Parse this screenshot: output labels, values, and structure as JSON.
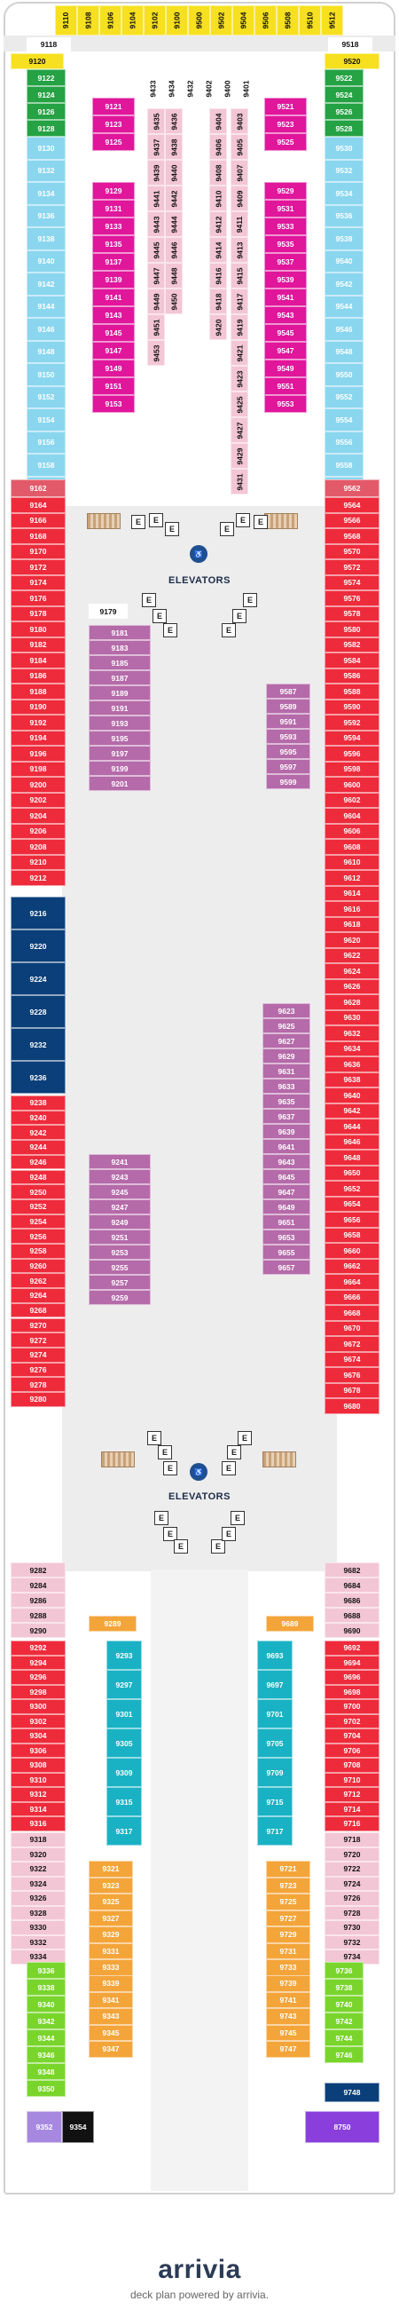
{
  "legend": {
    "elevators_label": "ELEVATORS"
  },
  "footer": {
    "brand": "arrivia",
    "tagline": "deck plan powered by arrivia."
  },
  "colors": {
    "suite_yellow": "#f6e020",
    "aqua_balcony": "#8ad6ef",
    "interior_pink": "#f3c6d5",
    "inside_magenta": "#e0169b",
    "oceanview_balcony_green": "#25a244",
    "balcony_red": "#ee2b3b",
    "obstructed_salmon": "#e25a6a",
    "central_park_purple": "#b56aa9",
    "boardwalk_teal": "#19b2c4",
    "orange": "#f3a53a",
    "lime": "#79d52c",
    "navy": "#0a3f79",
    "lavender": "#a788e0",
    "black": "#111111",
    "violet": "#8a3fdc"
  },
  "forward_vertical": [
    "9110",
    "9108",
    "9106",
    "9104",
    "9102",
    "9100",
    "9500",
    "9502",
    "9504",
    "9506",
    "9508",
    "9510",
    "9512"
  ],
  "forward_strip_left": "9118",
  "forward_strip_right": "9518",
  "suite_left": "9120",
  "suite_right": "9520",
  "green_left": [
    "9122",
    "9124",
    "9126",
    "9128"
  ],
  "green_right": [
    "9522",
    "9524",
    "9526",
    "9528"
  ],
  "aqua_left": [
    "9130",
    "9132",
    "9134",
    "9136",
    "9138",
    "9140",
    "9142",
    "9144",
    "9146",
    "9148",
    "9150",
    "9152",
    "9154",
    "9156",
    "9158",
    "9160"
  ],
  "aqua_right": [
    "9530",
    "9532",
    "9534",
    "9536",
    "9538",
    "9540",
    "9542",
    "9544",
    "9546",
    "9548",
    "9550",
    "9552",
    "9554",
    "9556",
    "9558",
    "9560"
  ],
  "inner_left_mag_top": [
    "9121",
    "9123",
    "9125"
  ],
  "inner_left_mag": [
    "9129",
    "9131",
    "9133",
    "9135",
    "9137",
    "9139",
    "9141",
    "9143",
    "9145",
    "9147",
    "9149",
    "9151",
    "9153"
  ],
  "inner_right_mag_top": [
    "9521",
    "9523",
    "9525"
  ],
  "inner_right_mag": [
    "9529",
    "9531",
    "9533",
    "9535",
    "9537",
    "9539",
    "9541",
    "9543",
    "9545",
    "9547",
    "9549",
    "9551",
    "9553"
  ],
  "interior_top_labels": [
    "9433",
    "9434",
    "9432",
    "9402",
    "9400",
    "9401"
  ],
  "interior_cols": [
    [
      "9435",
      "9437",
      "9439",
      "9441",
      "9443",
      "9445",
      "9447",
      "9449",
      "9451",
      "9453"
    ],
    [
      "9436",
      "9438",
      "9440",
      "9442",
      "9444",
      "9446",
      "9448",
      "9450"
    ],
    [
      "9404",
      "9406",
      "9408",
      "9410",
      "9412",
      "9414",
      "9416",
      "9418",
      "9420"
    ],
    [
      "9403",
      "9405",
      "9407",
      "9409",
      "9411",
      "9413",
      "9415",
      "9417",
      "9419",
      "9421",
      "9423",
      "9425",
      "9427",
      "9429",
      "9431"
    ]
  ],
  "salmon_left": "9162",
  "salmon_right": "9562",
  "red_left_1": [
    "9164",
    "9166",
    "9168",
    "9170",
    "9172",
    "9174",
    "9176",
    "9178",
    "9180",
    "9182",
    "9184",
    "9186",
    "9188",
    "9190",
    "9192",
    "9194",
    "9196",
    "9198",
    "9200",
    "9202",
    "9204",
    "9206",
    "9208",
    "9210",
    "9212"
  ],
  "red_right_1": [
    "9564",
    "9566",
    "9568",
    "9570",
    "9572",
    "9574",
    "9576",
    "9578",
    "9580",
    "9582",
    "9584",
    "9586",
    "9588",
    "9590",
    "9592",
    "9594",
    "9596",
    "9598",
    "9600",
    "9602",
    "9604",
    "9606",
    "9608",
    "9610",
    "9612",
    "9614",
    "9616",
    "9618",
    "9620",
    "9622",
    "9624",
    "9626",
    "9628",
    "9630",
    "9632",
    "9634",
    "9636",
    "9638",
    "9640",
    "9642",
    "9644",
    "9646",
    "9648",
    "9650",
    "9652",
    "9654",
    "9656",
    "9658",
    "9660",
    "9662",
    "9664",
    "9666",
    "9668",
    "9670",
    "9672",
    "9674",
    "9676",
    "9678",
    "9680"
  ],
  "navy_left": [
    "9216",
    "9220",
    "9224",
    "9228",
    "9232",
    "9236"
  ],
  "red_left_2": [
    "9238",
    "9240",
    "9242",
    "9244",
    "9246",
    "9248",
    "9250",
    "9252",
    "9254",
    "9256",
    "9258",
    "9260",
    "9262",
    "9264",
    "9268",
    "9270",
    "9272",
    "9274",
    "9276",
    "9278",
    "9280"
  ],
  "cp_left_top": "9179",
  "cp_left": [
    "9181",
    "9183",
    "9185",
    "9187",
    "9189",
    "9191",
    "9193",
    "9195",
    "9197",
    "9199",
    "9201"
  ],
  "cp_right": [
    "9587",
    "9589",
    "9591",
    "9593",
    "9595",
    "9597",
    "9599"
  ],
  "cp_left_2": [
    "9241",
    "9243",
    "9245",
    "9247",
    "9249",
    "9251",
    "9253",
    "9255",
    "9257",
    "9259"
  ],
  "cp_right_2": [
    "9623",
    "9625",
    "9627",
    "9629",
    "9631",
    "9633",
    "9635",
    "9637",
    "9639",
    "9641",
    "9643",
    "9645",
    "9647",
    "9649",
    "9651",
    "9653",
    "9655",
    "9657"
  ],
  "pink_aft_left": [
    "9282",
    "9284",
    "9286",
    "9288",
    "9290"
  ],
  "pink_aft_right": [
    "9682",
    "9684",
    "9686",
    "9688",
    "9690"
  ],
  "orange_single_left": "9289",
  "orange_single_right": "9689",
  "red_aft_left": [
    "9292",
    "9294",
    "9296",
    "9298",
    "9300",
    "9302",
    "9304",
    "9306",
    "9308",
    "9310",
    "9312",
    "9314",
    "9316"
  ],
  "red_aft_right": [
    "9692",
    "9694",
    "9696",
    "9698",
    "9700",
    "9702",
    "9704",
    "9706",
    "9708",
    "9710",
    "9712",
    "9714",
    "9716"
  ],
  "teal_left": [
    "9293",
    "9297",
    "9301",
    "9305",
    "9309",
    "9315",
    "9317"
  ],
  "teal_right": [
    "9693",
    "9697",
    "9701",
    "9705",
    "9709",
    "9715",
    "9717"
  ],
  "pink_aft2_left": [
    "9318",
    "9320",
    "9322",
    "9324",
    "9326",
    "9328",
    "9330",
    "9332",
    "9334"
  ],
  "pink_aft2_right": [
    "9718",
    "9720",
    "9722",
    "9724",
    "9726",
    "9728",
    "9730",
    "9732",
    "9734"
  ],
  "orange_left": [
    "9321",
    "9323",
    "9325",
    "9327",
    "9329",
    "9331",
    "9333"
  ],
  "orange_right": [
    "9721",
    "9723",
    "9725",
    "9727",
    "9729",
    "9731",
    "9733"
  ],
  "lime_left": [
    "9336",
    "9338",
    "9340",
    "9342",
    "9344",
    "9346",
    "9348",
    "9350"
  ],
  "lime_right": [
    "9736",
    "9738",
    "9740",
    "9742",
    "9744",
    "9746"
  ],
  "orange_aft_left": [
    "9339",
    "9341",
    "9343",
    "9345",
    "9347"
  ],
  "orange_aft_right": [
    "9739",
    "9741",
    "9743",
    "9745",
    "9747"
  ],
  "aft_left_lav": "9352",
  "aft_left_black": "9354",
  "aft_right_navy": "9748",
  "aft_violet": "8750"
}
